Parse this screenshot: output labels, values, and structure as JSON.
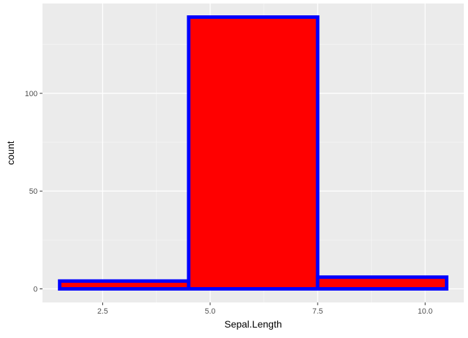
{
  "chart_data": {
    "type": "bar",
    "title": "",
    "xlabel": "Sepal.Length",
    "ylabel": "count",
    "xlim": [
      1.1,
      10.9
    ],
    "ylim": [
      -6.95,
      145.95
    ],
    "x_ticks": [
      2.5,
      5.0,
      7.5,
      10.0
    ],
    "x_tick_labels": [
      "2.5",
      "5.0",
      "7.5",
      "10.0"
    ],
    "y_ticks": [
      0,
      50,
      100
    ],
    "y_tick_labels": [
      "0",
      "50",
      "100"
    ],
    "bins": [
      {
        "x_min": 1.5,
        "x_max": 4.5,
        "count": 4
      },
      {
        "x_min": 4.5,
        "x_max": 7.5,
        "count": 139
      },
      {
        "x_min": 7.5,
        "x_max": 10.5,
        "count": 6
      }
    ],
    "grid": true,
    "legend": "none",
    "colors": {
      "panel_background": "#ebebeb",
      "grid_major": "#ffffff",
      "grid_minor": "#f5f5f5",
      "bar_fill": "#ff0000",
      "bar_outline": "#0000ff",
      "tick_mark": "#333333",
      "tick_label": "#4d4d4d",
      "axis_title": "#000000"
    }
  }
}
